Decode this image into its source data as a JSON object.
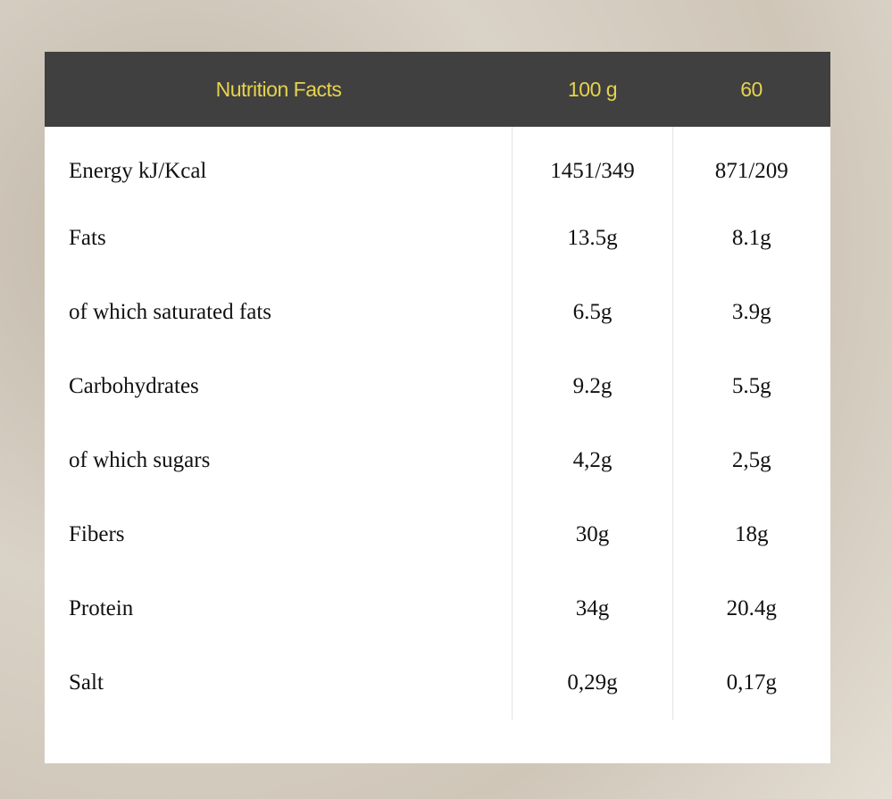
{
  "table": {
    "headers": [
      "Nutrition Facts",
      "100 g",
      "60"
    ],
    "rows": [
      [
        "Energy kJ/Kcal",
        "1451/349",
        "871/209"
      ],
      [
        "Fats",
        "13.5g",
        "8.1g"
      ],
      [
        "of which saturated fats",
        "6.5g",
        "3.9g"
      ],
      [
        "Carbohydrates",
        "9.2g",
        "5.5g"
      ],
      [
        "of which sugars",
        "4,2g",
        "2,5g"
      ],
      [
        "Fibers",
        "30g",
        "18g"
      ],
      [
        "Protein",
        "34g",
        "20.4g"
      ],
      [
        "Salt",
        "0,29g",
        "0,17g"
      ]
    ]
  },
  "colors": {
    "header_bg": "#404040",
    "header_text": "#e6d34e"
  }
}
